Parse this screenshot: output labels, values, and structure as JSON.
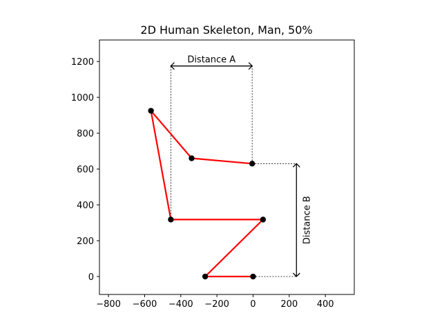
{
  "chart_data": {
    "type": "line",
    "title": "2D Human Skeleton, Man, 50%",
    "xlabel": "",
    "ylabel": "",
    "xlim": [
      -850,
      560
    ],
    "ylim": [
      -100,
      1320
    ],
    "xticks": [
      -800,
      -600,
      -400,
      -200,
      0,
      200,
      400
    ],
    "yticks": [
      0,
      200,
      400,
      600,
      800,
      1000,
      1200
    ],
    "grid": false,
    "series": [
      {
        "color": "#ff0000",
        "marker_color": "#000000",
        "points": [
          {
            "x": 0,
            "y": 0
          },
          {
            "x": -265,
            "y": 0
          },
          {
            "x": 55,
            "y": 318
          },
          {
            "x": -455,
            "y": 318
          },
          {
            "x": -565,
            "y": 925
          },
          {
            "x": -340,
            "y": 660
          },
          {
            "x": -5,
            "y": 630
          }
        ]
      }
    ],
    "annotations": [
      {
        "label": "Distance A",
        "orientation": "horizontal",
        "from": {
          "x": -455,
          "y": 1175
        },
        "to": {
          "x": -5,
          "y": 1175
        },
        "guides": [
          {
            "from": {
              "x": -455,
              "y": 318
            },
            "to": {
              "x": -455,
              "y": 1175
            }
          },
          {
            "from": {
              "x": -5,
              "y": 630
            },
            "to": {
              "x": -5,
              "y": 1175
            }
          }
        ]
      },
      {
        "label": "Distance B",
        "orientation": "vertical",
        "from": {
          "x": 240,
          "y": 0
        },
        "to": {
          "x": 240,
          "y": 630
        },
        "guides": [
          {
            "from": {
              "x": -5,
              "y": 630
            },
            "to": {
              "x": 240,
              "y": 630
            }
          },
          {
            "from": {
              "x": 0,
              "y": 0
            },
            "to": {
              "x": 240,
              "y": 0
            }
          }
        ]
      }
    ]
  }
}
